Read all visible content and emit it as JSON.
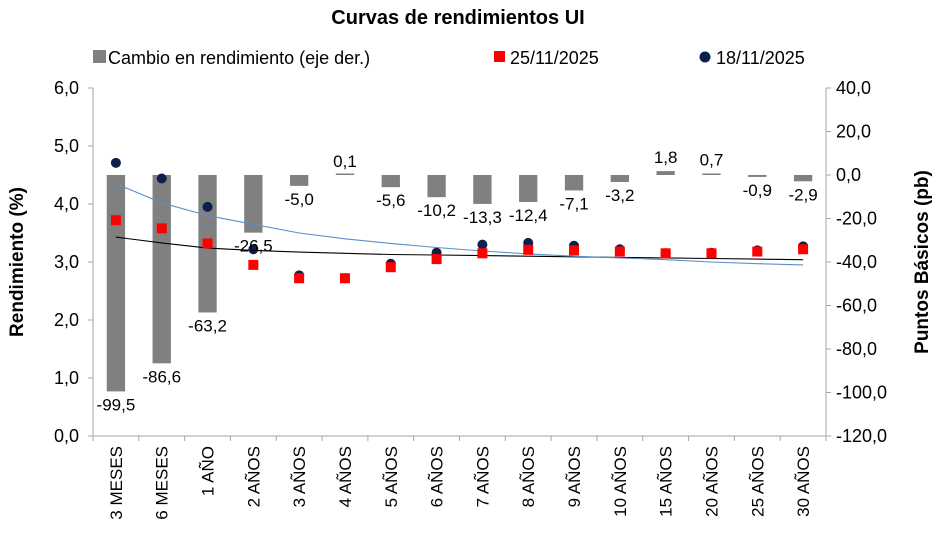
{
  "chart_data": {
    "type": "bar",
    "title": "Curvas de rendimientos UI",
    "ylabel": "Rendimiento (%)",
    "y2label": "Puntos Básicos (pb)",
    "ylim": [
      0,
      6
    ],
    "y2lim": [
      -120,
      40
    ],
    "y_ticks": [
      "0,0",
      "1,0",
      "2,0",
      "3,0",
      "4,0",
      "5,0",
      "6,0"
    ],
    "y2_ticks": [
      "-120,0",
      "-100,0",
      "-80,0",
      "-60,0",
      "-40,0",
      "-20,0",
      "0,0",
      "20,0",
      "40,0"
    ],
    "categories": [
      "3 MESES",
      "6 MESES",
      "1 AÑO",
      "2 AÑOS",
      "3 AÑOS",
      "4 AÑOS",
      "5 AÑOS",
      "6 AÑOS",
      "7 AÑOS",
      "8 AÑOS",
      "9 AÑOS",
      "10 AÑOS",
      "15 AÑOS",
      "20 AÑOS",
      "25 AÑOS",
      "30 AÑOS"
    ],
    "series": [
      {
        "name": "Cambio en rendimiento (eje der.)",
        "kind": "bar",
        "axis": "right",
        "color": "#808080",
        "values": [
          -99.5,
          -86.6,
          -63.2,
          -26.5,
          -5.0,
          0.1,
          -5.6,
          -10.2,
          -13.3,
          -12.4,
          -7.1,
          -3.2,
          1.8,
          0.7,
          -0.9,
          -2.9
        ],
        "labels": [
          "-99,5",
          "-86,6",
          "-63,2",
          "-26,5",
          "-5,0",
          "0,1",
          "-5,6",
          "-10,2",
          "-13,3",
          "-12,4",
          "-7,1",
          "-3,2",
          "1,8",
          "0,7",
          "-0,9",
          "-2,9"
        ]
      },
      {
        "name": "25/11/2025",
        "kind": "scatter",
        "marker": "square",
        "axis": "left",
        "color": "#ff0000",
        "values": [
          3.72,
          3.58,
          3.32,
          2.95,
          2.72,
          2.72,
          2.91,
          3.05,
          3.15,
          3.21,
          3.2,
          3.18,
          3.15,
          3.15,
          3.18,
          3.22
        ]
      },
      {
        "name": "18/11/2025",
        "kind": "scatter",
        "marker": "circle",
        "axis": "left",
        "color": "#0d1f4d",
        "values": [
          4.71,
          4.44,
          3.95,
          3.22,
          2.77,
          2.72,
          2.97,
          3.16,
          3.3,
          3.33,
          3.28,
          3.22,
          3.15,
          3.16,
          3.2,
          3.27
        ]
      }
    ],
    "trendlines": [
      {
        "series": "25/11/2025",
        "color": "#000000",
        "values": [
          3.43,
          3.33,
          3.24,
          3.2,
          3.17,
          3.15,
          3.13,
          3.12,
          3.11,
          3.1,
          3.09,
          3.08,
          3.07,
          3.06,
          3.05,
          3.04
        ]
      },
      {
        "series": "18/11/2025",
        "color": "#5b8fc9",
        "values": [
          4.35,
          4.02,
          3.8,
          3.65,
          3.5,
          3.4,
          3.32,
          3.25,
          3.19,
          3.14,
          3.1,
          3.07,
          3.04,
          3.0,
          2.97,
          2.95
        ]
      }
    ],
    "legend_position": "top"
  }
}
